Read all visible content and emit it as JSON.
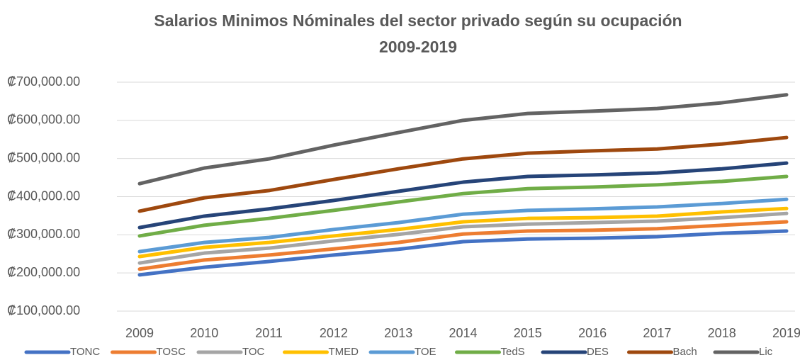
{
  "chart_data": {
    "type": "line",
    "title": "Salarios Minimos Nóminales del sector privado según su ocupación",
    "subtitle": "2009-2019",
    "categories": [
      "2009",
      "2010",
      "2011",
      "2012",
      "2013",
      "2014",
      "2015",
      "2016",
      "2017",
      "2018",
      "2019"
    ],
    "ylim": [
      100000,
      700000
    ],
    "yticks": [
      {
        "value": 100000,
        "label": "₡100,000.00"
      },
      {
        "value": 200000,
        "label": "₡200,000.00"
      },
      {
        "value": 300000,
        "label": "₡300,000.00"
      },
      {
        "value": 400000,
        "label": "₡400,000.00"
      },
      {
        "value": 500000,
        "label": "₡500,000.00"
      },
      {
        "value": 600000,
        "label": "₡600,000.00"
      },
      {
        "value": 700000,
        "label": "₡700,000.00"
      }
    ],
    "grid": true,
    "legend": "bottom",
    "series": [
      {
        "name": "TONC",
        "color": "#4472c4",
        "values": [
          195000,
          215000,
          230000,
          247000,
          262000,
          282000,
          289000,
          291000,
          295000,
          304000,
          310000
        ]
      },
      {
        "name": "TOSC",
        "color": "#ed7d31",
        "values": [
          210000,
          234000,
          247000,
          263000,
          280000,
          302000,
          310000,
          312000,
          316000,
          325000,
          334000
        ]
      },
      {
        "name": "TOC",
        "color": "#a5a5a5",
        "values": [
          226000,
          252000,
          265000,
          284000,
          301000,
          321000,
          328000,
          332000,
          336000,
          345000,
          356000
        ]
      },
      {
        "name": "TMED",
        "color": "#ffc000",
        "values": [
          243000,
          267000,
          280000,
          297000,
          314000,
          334000,
          343000,
          345000,
          349000,
          360000,
          369000
        ]
      },
      {
        "name": "TOE",
        "color": "#5b9bd5",
        "values": [
          256000,
          280000,
          293000,
          314000,
          332000,
          354000,
          364000,
          368000,
          373000,
          382000,
          393000
        ]
      },
      {
        "name": "TedS",
        "color": "#70ad47",
        "values": [
          297000,
          325000,
          343000,
          364000,
          386000,
          408000,
          421000,
          425000,
          431000,
          440000,
          453000
        ]
      },
      {
        "name": "DES",
        "color": "#264478",
        "values": [
          319000,
          349000,
          368000,
          390000,
          414000,
          438000,
          453000,
          457000,
          462000,
          473000,
          488000
        ]
      },
      {
        "name": "Bach",
        "color": "#9e480e",
        "values": [
          362000,
          397000,
          416000,
          445000,
          473000,
          499000,
          514000,
          520000,
          525000,
          538000,
          555000
        ]
      },
      {
        "name": "Lic",
        "color": "#636363",
        "values": [
          434000,
          475000,
          499000,
          535000,
          568000,
          600000,
          618000,
          624000,
          631000,
          646000,
          667000
        ]
      }
    ]
  }
}
